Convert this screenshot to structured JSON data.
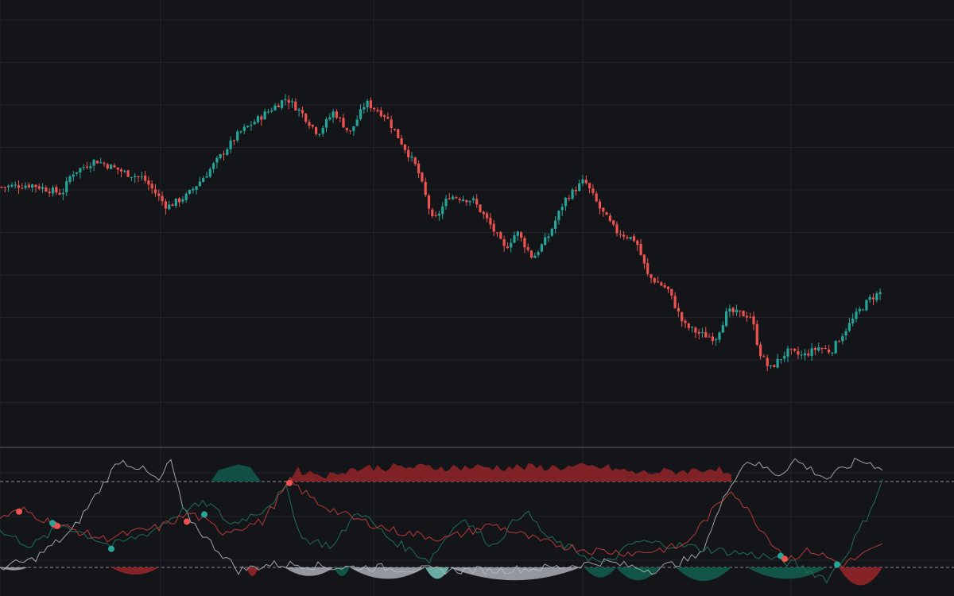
{
  "colors": {
    "background": "#141519",
    "grid": "#22242a",
    "separator": "#3a3c42",
    "up": "#26a69a",
    "down": "#ef5350",
    "threshold": "#8a8d93",
    "osc_white": "#b8bcc4",
    "osc_green_line": "#1e6e5a",
    "osc_red_line": "#b83a3a",
    "fill_green": "#12574a",
    "fill_red": "#8b2428",
    "fill_grey": "#9b9ea4",
    "fill_teal": "#6fb3ac"
  },
  "chart_data": [
    {
      "type": "candlestick",
      "title": "",
      "ylim": [
        0,
        100
      ],
      "grid": true,
      "candles": []
    },
    {
      "type": "area",
      "title": "",
      "ylim": [
        0,
        100
      ],
      "thresholds": [
        80,
        20
      ],
      "series": [],
      "signals": [
        {
          "x": 24,
          "y": 59,
          "dir": "down"
        },
        {
          "x": 68,
          "y": 50,
          "dir": "down"
        },
        {
          "x": 72,
          "y": 49,
          "dir": "down"
        },
        {
          "x": 66,
          "y": 51,
          "dir": "up"
        },
        {
          "x": 140,
          "y": 33,
          "dir": "up"
        },
        {
          "x": 235,
          "y": 52,
          "dir": "down"
        },
        {
          "x": 257,
          "y": 57,
          "dir": "up"
        },
        {
          "x": 364,
          "y": 79,
          "dir": "down"
        },
        {
          "x": 982,
          "y": 28,
          "dir": "up"
        },
        {
          "x": 987,
          "y": 26,
          "dir": "down"
        },
        {
          "x": 1053,
          "y": 22,
          "dir": "up"
        }
      ]
    }
  ]
}
